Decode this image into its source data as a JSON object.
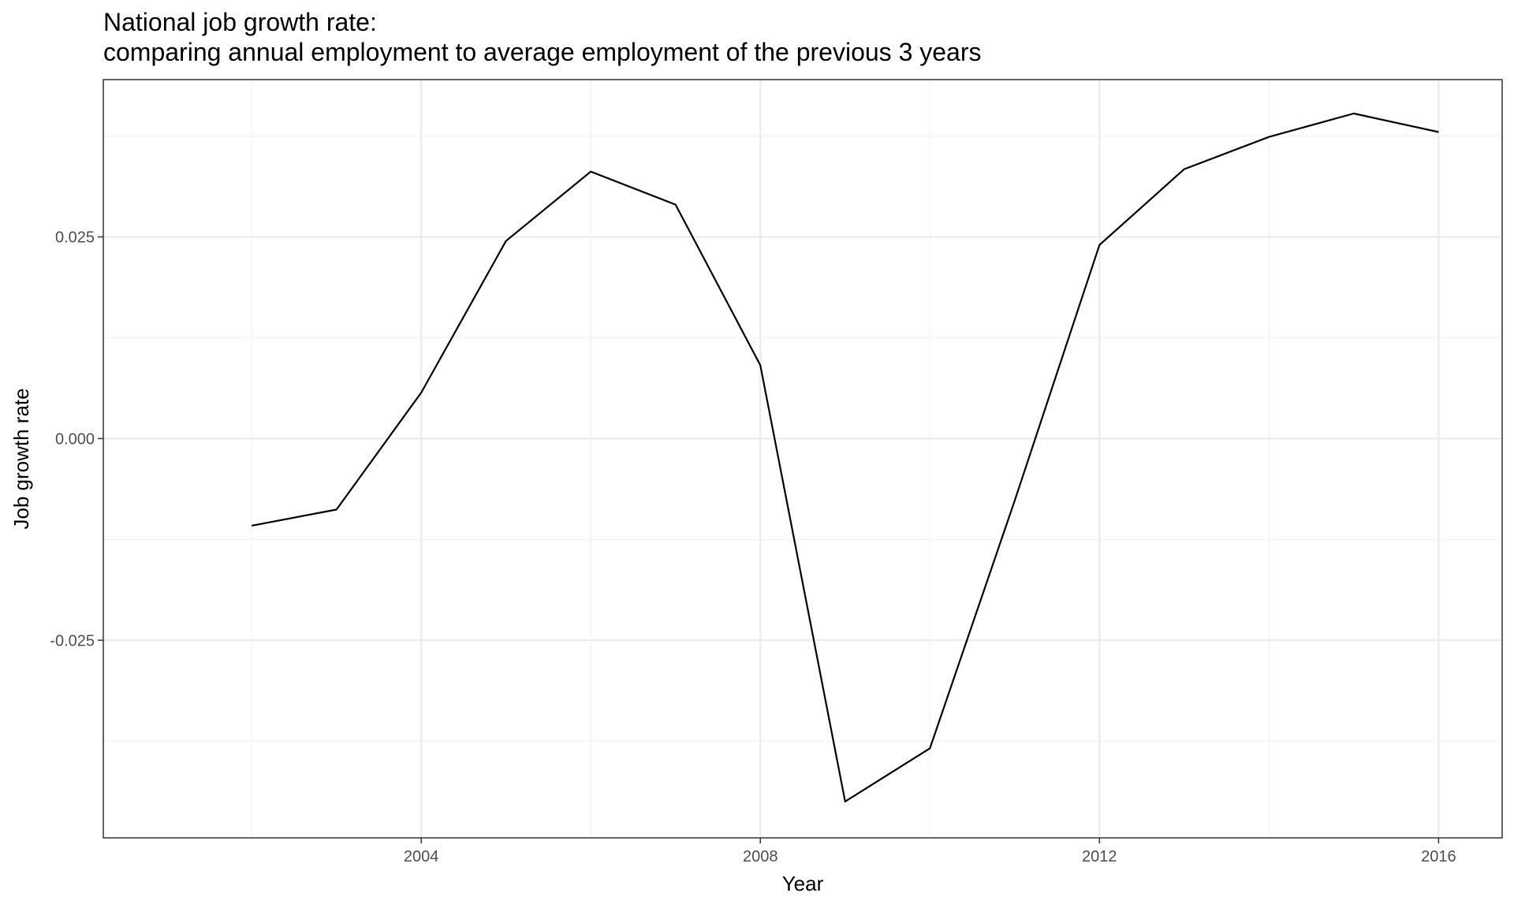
{
  "chart_data": {
    "type": "line",
    "title": "National job growth rate:",
    "subtitle": "comparing annual employment to average employment of the previous 3 years",
    "xlabel": "Year",
    "ylabel": "Job growth rate",
    "xlim": [
      2000.25,
      2016.75
    ],
    "ylim": [
      -0.0495,
      0.0445
    ],
    "x_ticks": [
      2004,
      2008,
      2012,
      2016
    ],
    "x_tick_labels": [
      "2004",
      "2008",
      "2012",
      "2016"
    ],
    "y_ticks": [
      -0.025,
      0,
      0.025
    ],
    "y_tick_labels": [
      "-0.025",
      "0.000",
      "0.025"
    ],
    "grid": true,
    "series": [
      {
        "x": [
          2002,
          2003,
          2004,
          2005,
          2006,
          2007,
          2008,
          2009,
          2010,
          2011,
          2012,
          2013,
          2014,
          2015,
          2016
        ],
        "values": [
          -0.0108,
          -0.0088,
          0.0057,
          0.0245,
          0.0331,
          0.029,
          0.0091,
          -0.045,
          -0.0384,
          -0.0077,
          0.024,
          0.0334,
          0.0374,
          0.0403,
          0.038
        ]
      }
    ],
    "colors": {
      "line": "#000000",
      "grid_major": "#ebebeb",
      "grid_minor": "#f2f2f2",
      "panel_border": "#333333",
      "tick_label": "#4d4d4d"
    }
  }
}
